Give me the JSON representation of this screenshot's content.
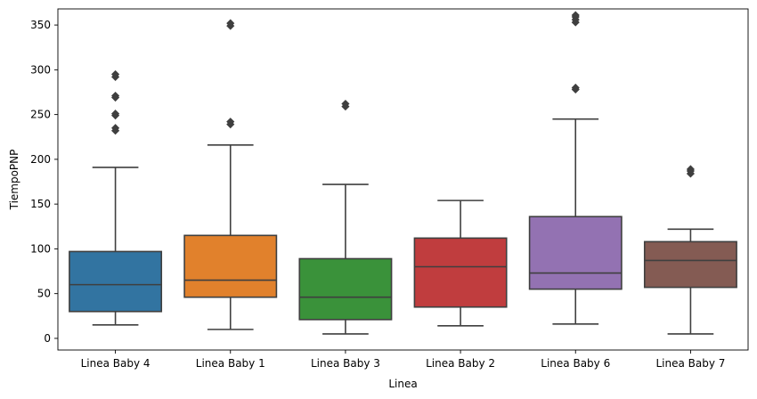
{
  "chart_data": {
    "type": "box",
    "xlabel": "Linea",
    "ylabel": "TiempoPNP",
    "ylim": [
      -13,
      368
    ],
    "yticks": [
      0,
      50,
      100,
      150,
      200,
      250,
      300,
      350
    ],
    "ytick_labels": [
      "0",
      "50",
      "100",
      "150",
      "200",
      "250",
      "300",
      "350"
    ],
    "grid": false,
    "categories": [
      "Linea Baby 4",
      "Linea Baby 1",
      "Linea Baby 3",
      "Linea Baby 2",
      "Linea Baby 6",
      "Linea Baby 7"
    ],
    "series": [
      {
        "category": "Linea Baby 4",
        "color": "#3274a1",
        "whisker_low": 15,
        "q1": 30,
        "median": 60,
        "q3": 97,
        "whisker_high": 191,
        "outliers": [
          232,
          235,
          249,
          251,
          269,
          271,
          292,
          295
        ]
      },
      {
        "category": "Linea Baby 1",
        "color": "#e1812c",
        "whisker_low": 10,
        "q1": 46,
        "median": 65,
        "q3": 115,
        "whisker_high": 216,
        "outliers": [
          239,
          242,
          349,
          352
        ]
      },
      {
        "category": "Linea Baby 3",
        "color": "#3a923a",
        "whisker_low": 5,
        "q1": 21,
        "median": 46,
        "q3": 89,
        "whisker_high": 172,
        "outliers": [
          259,
          262
        ]
      },
      {
        "category": "Linea Baby 2",
        "color": "#c03d3e",
        "whisker_low": 14,
        "q1": 35,
        "median": 80,
        "q3": 112,
        "whisker_high": 154,
        "outliers": []
      },
      {
        "category": "Linea Baby 6",
        "color": "#9372b2",
        "whisker_low": 16,
        "q1": 55,
        "median": 73,
        "q3": 136,
        "whisker_high": 245,
        "outliers": [
          278,
          280,
          353,
          356,
          359,
          361
        ]
      },
      {
        "category": "Linea Baby 7",
        "color": "#845b53",
        "whisker_low": 5,
        "q1": 57,
        "median": 87,
        "q3": 108,
        "whisker_high": 122,
        "outliers": [
          184,
          187,
          189
        ]
      }
    ]
  }
}
